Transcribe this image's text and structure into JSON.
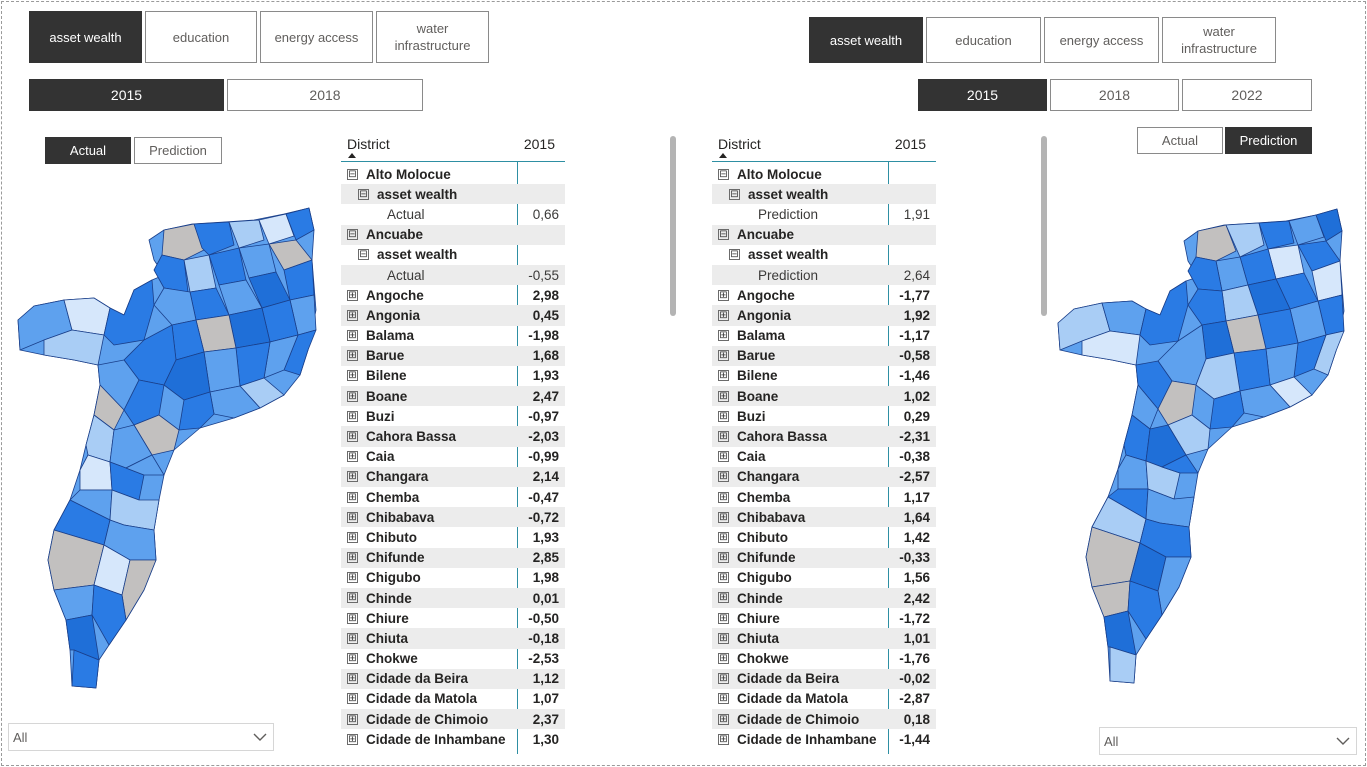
{
  "left": {
    "indicators": [
      "asset wealth",
      "education",
      "energy access",
      "water infrastructure"
    ],
    "selected_indicator": "asset wealth",
    "years": [
      "2015",
      "2018"
    ],
    "selected_year": "2015",
    "modes": [
      "Actual",
      "Prediction"
    ],
    "selected_mode": "Actual",
    "dropdown_value": "All",
    "matrix": {
      "col_district": "District",
      "col_year": "2015",
      "rows": [
        {
          "level": 0,
          "toggle": "⊟",
          "label": "Alto Molocue",
          "value": ""
        },
        {
          "level": 1,
          "toggle": "⊟",
          "label": "asset wealth",
          "value": ""
        },
        {
          "level": 2,
          "toggle": "",
          "label": "Actual",
          "value": "0,66"
        },
        {
          "level": 0,
          "toggle": "⊟",
          "label": "Ancuabe",
          "value": ""
        },
        {
          "level": 1,
          "toggle": "⊟",
          "label": "asset wealth",
          "value": ""
        },
        {
          "level": 2,
          "toggle": "",
          "label": "Actual",
          "value": "-0,55"
        },
        {
          "level": 0,
          "toggle": "⊞",
          "label": "Angoche",
          "value": "2,98"
        },
        {
          "level": 0,
          "toggle": "⊞",
          "label": "Angonia",
          "value": "0,45"
        },
        {
          "level": 0,
          "toggle": "⊞",
          "label": "Balama",
          "value": "-1,98"
        },
        {
          "level": 0,
          "toggle": "⊞",
          "label": "Barue",
          "value": "1,68"
        },
        {
          "level": 0,
          "toggle": "⊞",
          "label": "Bilene",
          "value": "1,93"
        },
        {
          "level": 0,
          "toggle": "⊞",
          "label": "Boane",
          "value": "2,47"
        },
        {
          "level": 0,
          "toggle": "⊞",
          "label": "Buzi",
          "value": "-0,97"
        },
        {
          "level": 0,
          "toggle": "⊞",
          "label": "Cahora Bassa",
          "value": "-2,03"
        },
        {
          "level": 0,
          "toggle": "⊞",
          "label": "Caia",
          "value": "-0,99"
        },
        {
          "level": 0,
          "toggle": "⊞",
          "label": "Changara",
          "value": "2,14"
        },
        {
          "level": 0,
          "toggle": "⊞",
          "label": "Chemba",
          "value": "-0,47"
        },
        {
          "level": 0,
          "toggle": "⊞",
          "label": "Chibabava",
          "value": "-0,72"
        },
        {
          "level": 0,
          "toggle": "⊞",
          "label": "Chibuto",
          "value": "1,93"
        },
        {
          "level": 0,
          "toggle": "⊞",
          "label": "Chifunde",
          "value": "2,85"
        },
        {
          "level": 0,
          "toggle": "⊞",
          "label": "Chigubo",
          "value": "1,98"
        },
        {
          "level": 0,
          "toggle": "⊞",
          "label": "Chinde",
          "value": "0,01"
        },
        {
          "level": 0,
          "toggle": "⊞",
          "label": "Chiure",
          "value": "-0,50"
        },
        {
          "level": 0,
          "toggle": "⊞",
          "label": "Chiuta",
          "value": "-0,18"
        },
        {
          "level": 0,
          "toggle": "⊞",
          "label": "Chokwe",
          "value": "-2,53"
        },
        {
          "level": 0,
          "toggle": "⊞",
          "label": "Cidade da Beira",
          "value": "1,12"
        },
        {
          "level": 0,
          "toggle": "⊞",
          "label": "Cidade da Matola",
          "value": "1,07"
        },
        {
          "level": 0,
          "toggle": "⊞",
          "label": "Cidade de Chimoio",
          "value": "2,37"
        },
        {
          "level": 0,
          "toggle": "⊞",
          "label": "Cidade de Inhambane",
          "value": "1,30"
        }
      ]
    }
  },
  "right": {
    "indicators": [
      "asset wealth",
      "education",
      "energy access",
      "water infrastructure"
    ],
    "selected_indicator": "asset wealth",
    "years": [
      "2015",
      "2018",
      "2022"
    ],
    "selected_year": "2015",
    "modes": [
      "Actual",
      "Prediction"
    ],
    "selected_mode": "Prediction",
    "dropdown_value": "All",
    "matrix": {
      "col_district": "District",
      "col_year": "2015",
      "rows": [
        {
          "level": 0,
          "toggle": "⊟",
          "label": "Alto Molocue",
          "value": ""
        },
        {
          "level": 1,
          "toggle": "⊟",
          "label": "asset wealth",
          "value": ""
        },
        {
          "level": 2,
          "toggle": "",
          "label": "Prediction",
          "value": "1,91"
        },
        {
          "level": 0,
          "toggle": "⊟",
          "label": "Ancuabe",
          "value": ""
        },
        {
          "level": 1,
          "toggle": "⊟",
          "label": "asset wealth",
          "value": ""
        },
        {
          "level": 2,
          "toggle": "",
          "label": "Prediction",
          "value": "2,64"
        },
        {
          "level": 0,
          "toggle": "⊞",
          "label": "Angoche",
          "value": "-1,77"
        },
        {
          "level": 0,
          "toggle": "⊞",
          "label": "Angonia",
          "value": "1,92"
        },
        {
          "level": 0,
          "toggle": "⊞",
          "label": "Balama",
          "value": "-1,17"
        },
        {
          "level": 0,
          "toggle": "⊞",
          "label": "Barue",
          "value": "-0,58"
        },
        {
          "level": 0,
          "toggle": "⊞",
          "label": "Bilene",
          "value": "-1,46"
        },
        {
          "level": 0,
          "toggle": "⊞",
          "label": "Boane",
          "value": "1,02"
        },
        {
          "level": 0,
          "toggle": "⊞",
          "label": "Buzi",
          "value": "0,29"
        },
        {
          "level": 0,
          "toggle": "⊞",
          "label": "Cahora Bassa",
          "value": "-2,31"
        },
        {
          "level": 0,
          "toggle": "⊞",
          "label": "Caia",
          "value": "-0,38"
        },
        {
          "level": 0,
          "toggle": "⊞",
          "label": "Changara",
          "value": "-2,57"
        },
        {
          "level": 0,
          "toggle": "⊞",
          "label": "Chemba",
          "value": "1,17"
        },
        {
          "level": 0,
          "toggle": "⊞",
          "label": "Chibabava",
          "value": "1,64"
        },
        {
          "level": 0,
          "toggle": "⊞",
          "label": "Chibuto",
          "value": "1,42"
        },
        {
          "level": 0,
          "toggle": "⊞",
          "label": "Chifunde",
          "value": "-0,33"
        },
        {
          "level": 0,
          "toggle": "⊞",
          "label": "Chigubo",
          "value": "1,56"
        },
        {
          "level": 0,
          "toggle": "⊞",
          "label": "Chinde",
          "value": "2,42"
        },
        {
          "level": 0,
          "toggle": "⊞",
          "label": "Chiure",
          "value": "-1,72"
        },
        {
          "level": 0,
          "toggle": "⊞",
          "label": "Chiuta",
          "value": "1,01"
        },
        {
          "level": 0,
          "toggle": "⊞",
          "label": "Chokwe",
          "value": "-1,76"
        },
        {
          "level": 0,
          "toggle": "⊞",
          "label": "Cidade da Beira",
          "value": "-0,02"
        },
        {
          "level": 0,
          "toggle": "⊞",
          "label": "Cidade da Matola",
          "value": "-2,87"
        },
        {
          "level": 0,
          "toggle": "⊞",
          "label": "Cidade de Chimoio",
          "value": "0,18"
        },
        {
          "level": 0,
          "toggle": "⊞",
          "label": "Cidade de Inhambane",
          "value": "-1,44"
        }
      ]
    }
  },
  "colors": {
    "selected_button": "#333333",
    "accent_line": "#2e8fa3",
    "map_blue": "#2a7be4",
    "map_mid": "#5ea1ee",
    "map_light": "#a9cdf5",
    "map_pale": "#d6e7fb",
    "map_grey": "#c2c0bf"
  },
  "icons": [
    "expand-collapse-icon",
    "chevron-down-icon",
    "sort-ascending-icon"
  ]
}
